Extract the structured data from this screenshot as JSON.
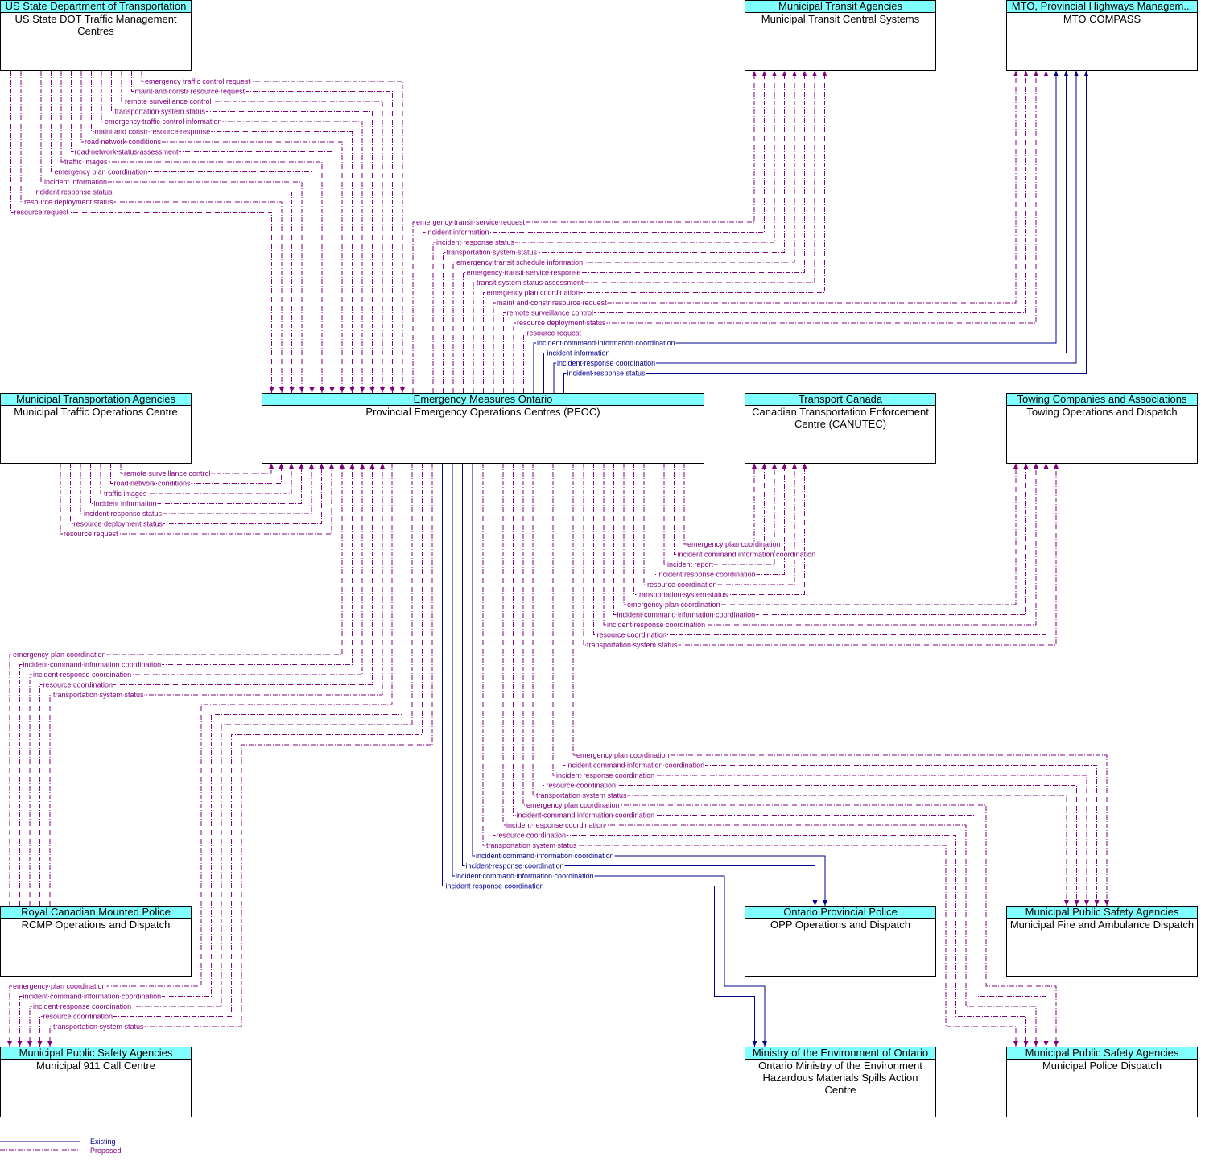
{
  "nodes": [
    {
      "header": "US State Department of Transportation",
      "label": "US State DOT Traffic Management Centres"
    },
    {
      "header": "Municipal Transit Agencies",
      "label": "Municipal Transit Central Systems"
    },
    {
      "header": "MTO, Provincial Highways Managem...",
      "label": "MTO COMPASS"
    },
    {
      "header": "Municipal Transportation Agencies",
      "label": "Municipal Traffic Operations Centre"
    },
    {
      "header": "Emergency Measures Ontario",
      "label": "Provincial Emergency Operations Centres (PEOC)"
    },
    {
      "header": "Transport Canada",
      "label": "Canadian Transportation Enforcement Centre (CANUTEC)"
    },
    {
      "header": "Towing Companies and Associations",
      "label": "Towing Operations and Dispatch"
    },
    {
      "header": "Royal Canadian Mounted Police",
      "label": "RCMP Operations and Dispatch"
    },
    {
      "header": "Ontario Provincial Police",
      "label": "OPP Operations and Dispatch"
    },
    {
      "header": "Municipal Public Safety Agencies",
      "label": "Municipal Fire and Ambulance Dispatch"
    },
    {
      "header": "Municipal Public Safety Agencies",
      "label": "Municipal 911 Call Centre"
    },
    {
      "header": "Ministry of the Environment of Ontario",
      "label": "Ontario Ministry of the Environment Hazardous Materials Spills Action Centre"
    },
    {
      "header": "Municipal Public Safety Agencies",
      "label": "Municipal Police Dispatch"
    }
  ],
  "flows": [
    {
      "existing": false,
      "labels": [
        "emergency traffic control request",
        "maint and constr resource request",
        "remote surveillance control",
        "transportation system status",
        "emergency traffic control information",
        "maint and constr resource response",
        "road network conditions",
        "road network status assessment",
        "traffic images",
        "emergency plan coordination",
        "incident information",
        "incident response status",
        "resource deployment status",
        "resource request"
      ]
    },
    {
      "existing": false,
      "labels": [
        "emergency transit service request",
        "incident information",
        "incident response status",
        "transportation system status",
        "emergency transit schedule information",
        "emergency transit service response",
        "transit system status assessment",
        "emergency plan coordination"
      ]
    },
    {
      "existing": false,
      "labels": [
        "maint and constr resource request",
        "remote surveillance control",
        "resource deployment status",
        "resource request"
      ]
    },
    {
      "existing": true,
      "labels": [
        "incident command information coordination",
        "incident information",
        "incident response coordination",
        "incident response status"
      ]
    },
    {
      "existing": false,
      "labels": [
        "remote surveillance control",
        "road network conditions",
        "traffic images",
        "incident information",
        "incident response status",
        "resource deployment status",
        "resource request"
      ]
    },
    {
      "existing": false,
      "labels": [
        "emergency plan coordination",
        "incident command information coordination",
        "incident report",
        "incident response coordination",
        "resource coordination",
        "transportation system status"
      ]
    },
    {
      "existing": false,
      "labels": [
        "emergency plan coordination",
        "incident command information coordination",
        "incident response coordination",
        "resource coordination",
        "transportation system status"
      ]
    },
    {
      "existing": false,
      "labels": [
        "emergency plan coordination",
        "incident command information coordination",
        "incident response coordination",
        "resource coordination",
        "transportation system status"
      ]
    },
    {
      "existing": false,
      "labels": [
        "emergency plan coordination",
        "incident command information coordination",
        "incident response coordination",
        "resource coordination",
        "transportation system status"
      ]
    },
    {
      "existing": false,
      "labels": [
        "emergency plan coordination",
        "incident command information coordination",
        "incident response coordination",
        "resource coordination",
        "transportation system status"
      ]
    },
    {
      "existing": false,
      "labels": [
        "emergency plan coordination",
        "incident command information coordination",
        "incident response coordination",
        "resource coordination",
        "transportation system status"
      ]
    },
    {
      "existing": true,
      "labels": [
        "incident command information coordination",
        "incident response coordination"
      ]
    },
    {
      "existing": true,
      "labels": [
        "incident command information coordination",
        "incident response coordination"
      ]
    }
  ],
  "legend": {
    "existing": "Existing",
    "proposed": "Proposed"
  }
}
